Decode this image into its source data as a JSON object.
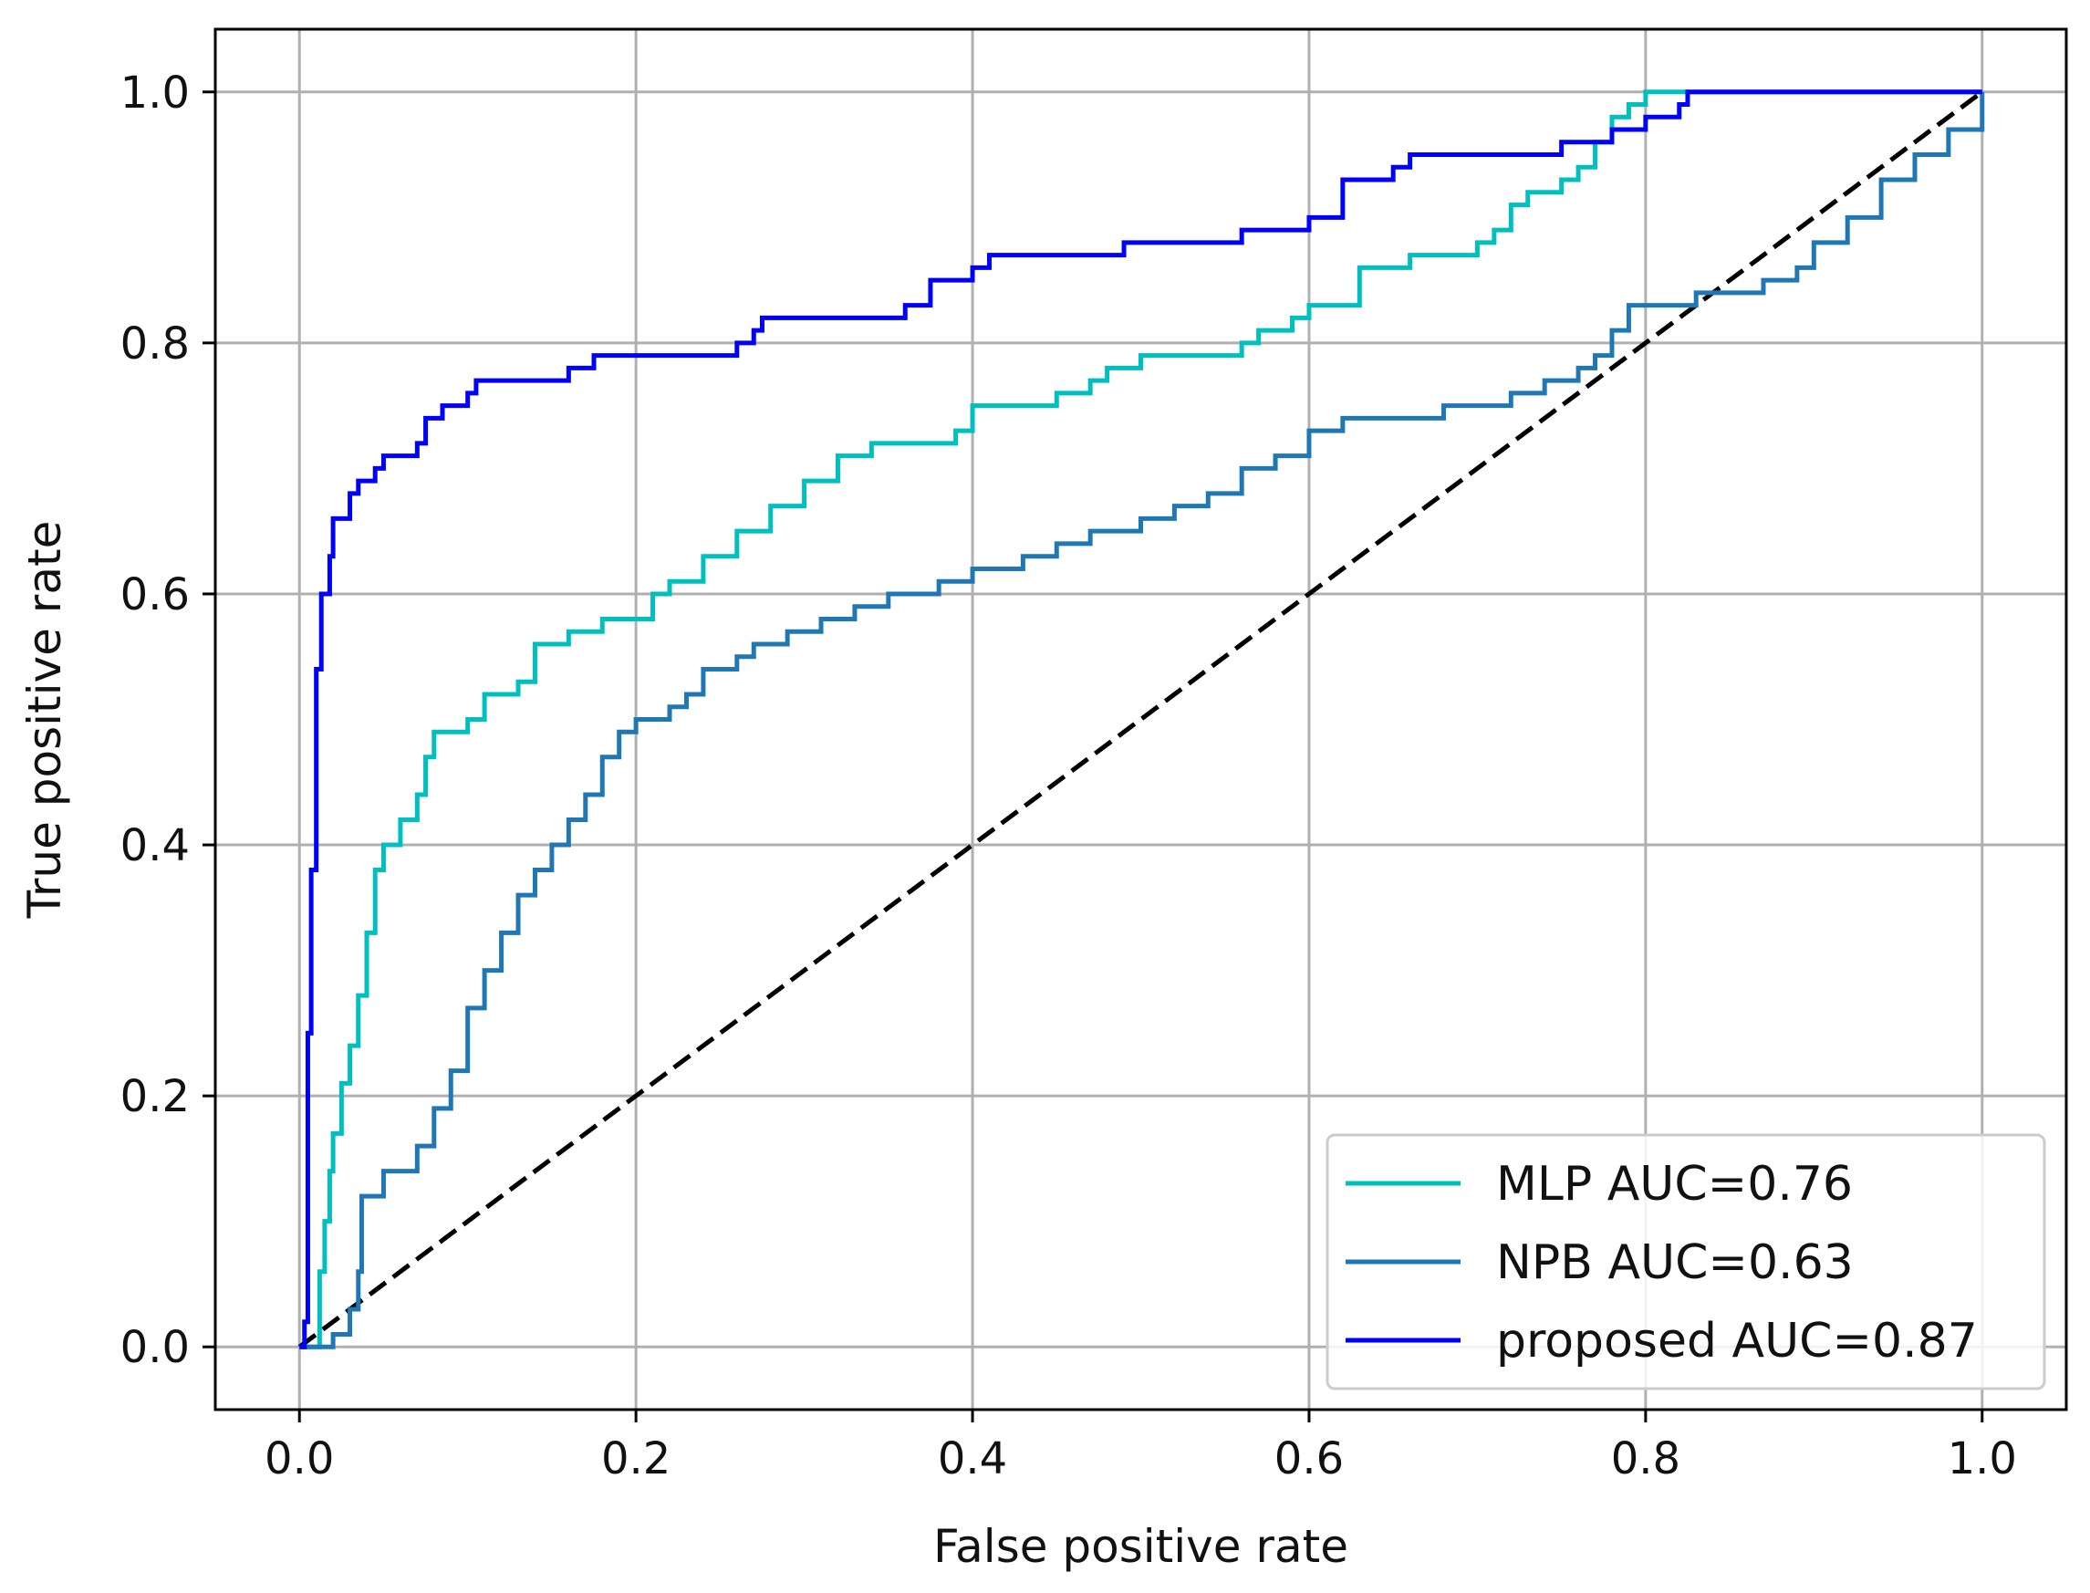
{
  "chart_data": {
    "type": "line",
    "title": "",
    "xlabel": "False positive rate",
    "ylabel": "True positive rate",
    "xlim": [
      -0.05,
      1.05
    ],
    "ylim": [
      -0.05,
      1.05
    ],
    "xticks": [
      0.0,
      0.2,
      0.4,
      0.6,
      0.8,
      1.0
    ],
    "yticks": [
      0.0,
      0.2,
      0.4,
      0.6,
      0.8,
      1.0
    ],
    "xtick_labels": [
      "0.0",
      "0.2",
      "0.4",
      "0.6",
      "0.8",
      "1.0"
    ],
    "ytick_labels": [
      "0.0",
      "0.2",
      "0.4",
      "0.6",
      "0.8",
      "1.0"
    ],
    "grid": true,
    "legend_position": "lower-right",
    "series": [
      {
        "name": "MLP AUC=0.76",
        "color": "#00bfbf",
        "step": true,
        "points": [
          [
            0.0,
            0.0
          ],
          [
            0.01,
            0.0
          ],
          [
            0.012,
            0.06
          ],
          [
            0.015,
            0.1
          ],
          [
            0.018,
            0.14
          ],
          [
            0.02,
            0.17
          ],
          [
            0.025,
            0.21
          ],
          [
            0.03,
            0.24
          ],
          [
            0.035,
            0.28
          ],
          [
            0.04,
            0.33
          ],
          [
            0.045,
            0.38
          ],
          [
            0.05,
            0.4
          ],
          [
            0.06,
            0.42
          ],
          [
            0.07,
            0.44
          ],
          [
            0.075,
            0.47
          ],
          [
            0.08,
            0.49
          ],
          [
            0.1,
            0.5
          ],
          [
            0.11,
            0.52
          ],
          [
            0.13,
            0.53
          ],
          [
            0.14,
            0.56
          ],
          [
            0.16,
            0.57
          ],
          [
            0.18,
            0.58
          ],
          [
            0.2,
            0.58
          ],
          [
            0.21,
            0.6
          ],
          [
            0.22,
            0.61
          ],
          [
            0.24,
            0.63
          ],
          [
            0.26,
            0.65
          ],
          [
            0.28,
            0.67
          ],
          [
            0.3,
            0.69
          ],
          [
            0.32,
            0.71
          ],
          [
            0.34,
            0.72
          ],
          [
            0.37,
            0.72
          ],
          [
            0.39,
            0.73
          ],
          [
            0.4,
            0.75
          ],
          [
            0.44,
            0.75
          ],
          [
            0.45,
            0.76
          ],
          [
            0.47,
            0.77
          ],
          [
            0.48,
            0.78
          ],
          [
            0.5,
            0.79
          ],
          [
            0.54,
            0.79
          ],
          [
            0.56,
            0.8
          ],
          [
            0.57,
            0.81
          ],
          [
            0.59,
            0.82
          ],
          [
            0.6,
            0.83
          ],
          [
            0.62,
            0.83
          ],
          [
            0.63,
            0.86
          ],
          [
            0.66,
            0.87
          ],
          [
            0.7,
            0.88
          ],
          [
            0.71,
            0.89
          ],
          [
            0.72,
            0.91
          ],
          [
            0.73,
            0.92
          ],
          [
            0.75,
            0.93
          ],
          [
            0.76,
            0.94
          ],
          [
            0.77,
            0.96
          ],
          [
            0.78,
            0.98
          ],
          [
            0.79,
            0.99
          ],
          [
            0.8,
            1.0
          ],
          [
            1.0,
            1.0
          ]
        ]
      },
      {
        "name": "NPB AUC=0.63",
        "color": "#1f77b4",
        "step": true,
        "points": [
          [
            0.0,
            0.0
          ],
          [
            0.02,
            0.01
          ],
          [
            0.03,
            0.03
          ],
          [
            0.035,
            0.06
          ],
          [
            0.037,
            0.12
          ],
          [
            0.05,
            0.14
          ],
          [
            0.07,
            0.16
          ],
          [
            0.08,
            0.19
          ],
          [
            0.09,
            0.22
          ],
          [
            0.1,
            0.27
          ],
          [
            0.11,
            0.3
          ],
          [
            0.12,
            0.33
          ],
          [
            0.13,
            0.36
          ],
          [
            0.14,
            0.38
          ],
          [
            0.15,
            0.4
          ],
          [
            0.16,
            0.42
          ],
          [
            0.17,
            0.44
          ],
          [
            0.18,
            0.47
          ],
          [
            0.19,
            0.49
          ],
          [
            0.2,
            0.5
          ],
          [
            0.22,
            0.51
          ],
          [
            0.23,
            0.52
          ],
          [
            0.24,
            0.54
          ],
          [
            0.26,
            0.55
          ],
          [
            0.27,
            0.56
          ],
          [
            0.29,
            0.57
          ],
          [
            0.31,
            0.58
          ],
          [
            0.33,
            0.59
          ],
          [
            0.35,
            0.6
          ],
          [
            0.38,
            0.61
          ],
          [
            0.4,
            0.62
          ],
          [
            0.43,
            0.63
          ],
          [
            0.45,
            0.64
          ],
          [
            0.47,
            0.65
          ],
          [
            0.5,
            0.66
          ],
          [
            0.52,
            0.67
          ],
          [
            0.54,
            0.68
          ],
          [
            0.56,
            0.7
          ],
          [
            0.58,
            0.71
          ],
          [
            0.6,
            0.73
          ],
          [
            0.62,
            0.74
          ],
          [
            0.65,
            0.74
          ],
          [
            0.68,
            0.75
          ],
          [
            0.7,
            0.75
          ],
          [
            0.72,
            0.76
          ],
          [
            0.74,
            0.77
          ],
          [
            0.76,
            0.78
          ],
          [
            0.77,
            0.79
          ],
          [
            0.78,
            0.81
          ],
          [
            0.79,
            0.83
          ],
          [
            0.82,
            0.83
          ],
          [
            0.83,
            0.84
          ],
          [
            0.85,
            0.84
          ],
          [
            0.87,
            0.85
          ],
          [
            0.89,
            0.86
          ],
          [
            0.9,
            0.88
          ],
          [
            0.92,
            0.9
          ],
          [
            0.94,
            0.93
          ],
          [
            0.96,
            0.95
          ],
          [
            0.98,
            0.97
          ],
          [
            1.0,
            1.0
          ]
        ]
      },
      {
        "name": "proposed AUC=0.87",
        "color": "#0000ff",
        "step": true,
        "points": [
          [
            0.0,
            0.0
          ],
          [
            0.003,
            0.02
          ],
          [
            0.005,
            0.25
          ],
          [
            0.007,
            0.38
          ],
          [
            0.01,
            0.54
          ],
          [
            0.013,
            0.6
          ],
          [
            0.018,
            0.63
          ],
          [
            0.02,
            0.66
          ],
          [
            0.03,
            0.68
          ],
          [
            0.035,
            0.69
          ],
          [
            0.045,
            0.7
          ],
          [
            0.05,
            0.71
          ],
          [
            0.07,
            0.72
          ],
          [
            0.075,
            0.74
          ],
          [
            0.085,
            0.75
          ],
          [
            0.1,
            0.76
          ],
          [
            0.105,
            0.77
          ],
          [
            0.16,
            0.78
          ],
          [
            0.175,
            0.79
          ],
          [
            0.26,
            0.8
          ],
          [
            0.27,
            0.81
          ],
          [
            0.275,
            0.82
          ],
          [
            0.36,
            0.83
          ],
          [
            0.375,
            0.85
          ],
          [
            0.4,
            0.86
          ],
          [
            0.41,
            0.87
          ],
          [
            0.49,
            0.88
          ],
          [
            0.56,
            0.89
          ],
          [
            0.6,
            0.9
          ],
          [
            0.62,
            0.93
          ],
          [
            0.65,
            0.94
          ],
          [
            0.66,
            0.95
          ],
          [
            0.75,
            0.96
          ],
          [
            0.78,
            0.97
          ],
          [
            0.8,
            0.98
          ],
          [
            0.82,
            0.99
          ],
          [
            0.825,
            1.0
          ],
          [
            1.0,
            1.0
          ]
        ]
      },
      {
        "name": "",
        "color": "#000000",
        "dashed": true,
        "points": [
          [
            0.0,
            0.0
          ],
          [
            1.0,
            1.0
          ]
        ]
      }
    ]
  }
}
